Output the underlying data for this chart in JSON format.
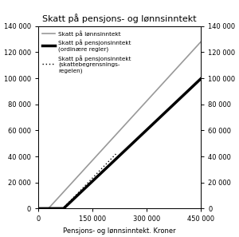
{
  "title": "Skatt på pensjons- og lønnsinntekt",
  "xlabel": "Pensjons- og lønnsinntekt. Kroner",
  "xlim": [
    0,
    450000
  ],
  "ylim": [
    0,
    140000
  ],
  "yticks": [
    0,
    20000,
    40000,
    60000,
    80000,
    100000,
    120000,
    140000
  ],
  "xticks": [
    0,
    150000,
    300000,
    450000
  ],
  "line1_label": "Skatt på lønnsinntekt",
  "line2_label": "Skatt på pensjonsinntekt\n(ordinære regler)",
  "line3_label": "Skatt på pensjonsinntekt\n(skattebegrensnings-\nregelen)",
  "line1_color": "#999999",
  "line2_color": "#000000",
  "line3_color": "#000000",
  "bg_color": "#ffffff",
  "line1_lw": 1.2,
  "line2_lw": 2.5,
  "line3_lw": 1.0,
  "wage_threshold": 28000,
  "wage_slope": 0.303,
  "pension_threshold": 70000,
  "pension_slope": 0.262,
  "dotted_start": 68000,
  "dotted_end": 215000,
  "dotted_slope": 0.285
}
